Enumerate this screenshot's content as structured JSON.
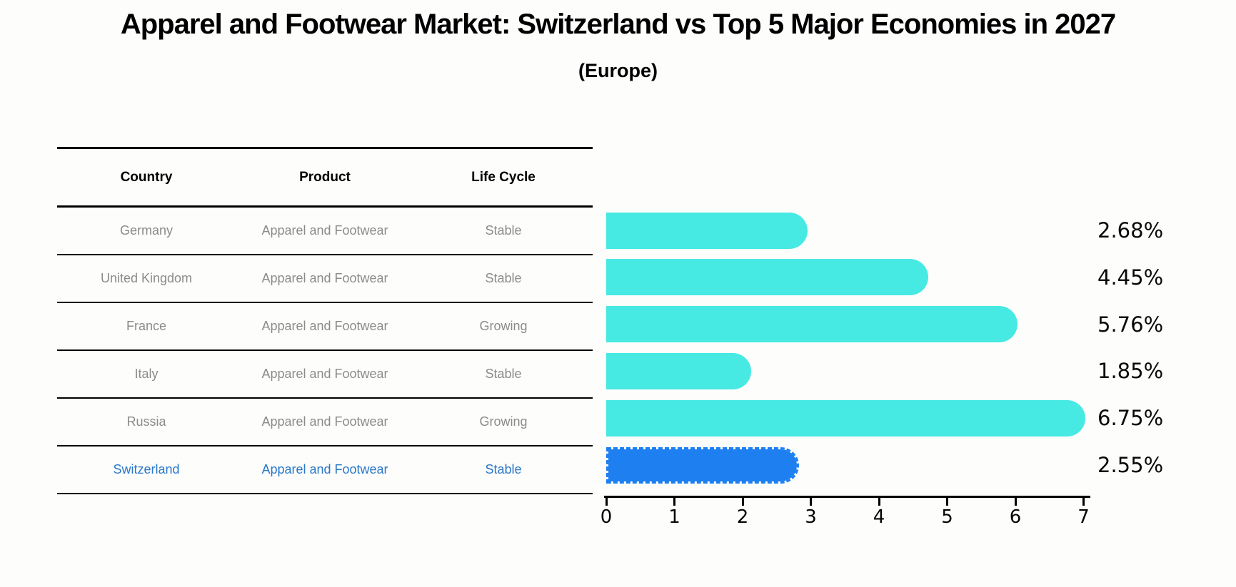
{
  "title": "Apparel and Footwear Market: Switzerland vs Top 5 Major Economies in 2027",
  "subtitle": "(Europe)",
  "table": {
    "headers": [
      "Country",
      "Product",
      "Life Cycle"
    ],
    "rows": [
      {
        "country": "Germany",
        "product": "Apparel and Footwear",
        "life_cycle": "Stable",
        "highlight": false
      },
      {
        "country": "United Kingdom",
        "product": "Apparel and Footwear",
        "life_cycle": "Stable",
        "highlight": false
      },
      {
        "country": "France",
        "product": "Apparel and Footwear",
        "life_cycle": "Growing",
        "highlight": false
      },
      {
        "country": "Italy",
        "product": "Apparel and Footwear",
        "life_cycle": "Stable",
        "highlight": false
      },
      {
        "country": "Russia",
        "product": "Apparel and Footwear",
        "life_cycle": "Growing",
        "highlight": false
      },
      {
        "country": "Switzerland",
        "product": "Apparel and Footwear",
        "life_cycle": "Stable",
        "highlight": true
      }
    ]
  },
  "chart_data": {
    "type": "bar",
    "orientation": "horizontal",
    "title": "Apparel and Footwear Market: Switzerland vs Top 5 Major Economies in 2027 (Europe)",
    "categories": [
      "Germany",
      "United Kingdom",
      "France",
      "Italy",
      "Russia",
      "Switzerland"
    ],
    "values": [
      2.68,
      4.45,
      5.76,
      1.85,
      6.75,
      2.55
    ],
    "value_labels": [
      "2.68%",
      "4.45%",
      "5.76%",
      "1.85%",
      "6.75%",
      "2.55%"
    ],
    "highlight_index": 5,
    "xlim": [
      0,
      7
    ],
    "x_ticks": [
      "0",
      "1",
      "2",
      "3",
      "4",
      "5",
      "6",
      "7"
    ],
    "grid": false,
    "legend": false,
    "colors": {
      "bar": "#47e9e3",
      "highlight_bar": "#1e80f0",
      "highlight_row_text": "#2878c8",
      "row_text": "#8b8b8b",
      "header_text": "#000000",
      "label_text": "#0a0a0a"
    }
  }
}
